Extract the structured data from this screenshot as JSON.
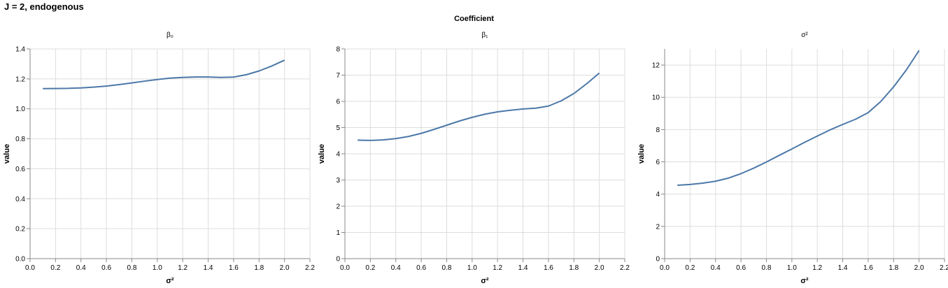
{
  "title": "J = 2, endogenous",
  "facet_header": "Coefficient",
  "colors": {
    "line": "#4c78a8",
    "grid": "#dddddd",
    "axis": "#888888",
    "text": "#000000"
  },
  "chart_data": [
    {
      "type": "line",
      "title": "β₀",
      "xlabel": "σ²",
      "ylabel": "value",
      "xlim": [
        0,
        2.2
      ],
      "ylim": [
        0,
        1.4
      ],
      "xticks": [
        "0.0",
        "0.2",
        "0.4",
        "0.6",
        "0.8",
        "1.0",
        "1.2",
        "1.4",
        "1.6",
        "1.8",
        "2.0",
        "2.2"
      ],
      "yticks": [
        "0.0",
        "0.2",
        "0.4",
        "0.6",
        "0.8",
        "1.0",
        "1.2",
        "1.4"
      ],
      "grid": true,
      "x": [
        0.1,
        0.2,
        0.3,
        0.4,
        0.5,
        0.6,
        0.7,
        0.8,
        0.9,
        1.0,
        1.1,
        1.2,
        1.3,
        1.4,
        1.5,
        1.6,
        1.7,
        1.8,
        1.9,
        2.0
      ],
      "values": [
        1.135,
        1.136,
        1.137,
        1.14,
        1.145,
        1.152,
        1.162,
        1.173,
        1.185,
        1.196,
        1.205,
        1.21,
        1.213,
        1.213,
        1.21,
        1.212,
        1.228,
        1.253,
        1.286,
        1.325
      ]
    },
    {
      "type": "line",
      "title": "β₁",
      "xlabel": "σ²",
      "ylabel": "value",
      "xlim": [
        0,
        2.2
      ],
      "ylim": [
        0,
        8
      ],
      "xticks": [
        "0.0",
        "0.2",
        "0.4",
        "0.6",
        "0.8",
        "1.0",
        "1.2",
        "1.4",
        "1.6",
        "1.8",
        "2.0",
        "2.2"
      ],
      "yticks": [
        "0",
        "1",
        "2",
        "3",
        "4",
        "5",
        "6",
        "7",
        "8"
      ],
      "grid": true,
      "x": [
        0.1,
        0.2,
        0.3,
        0.4,
        0.5,
        0.6,
        0.7,
        0.8,
        0.9,
        1.0,
        1.1,
        1.2,
        1.3,
        1.4,
        1.5,
        1.6,
        1.7,
        1.8,
        1.9,
        2.0
      ],
      "values": [
        4.52,
        4.51,
        4.53,
        4.58,
        4.66,
        4.78,
        4.93,
        5.09,
        5.25,
        5.39,
        5.51,
        5.6,
        5.66,
        5.71,
        5.74,
        5.82,
        6.02,
        6.3,
        6.67,
        7.08
      ]
    },
    {
      "type": "line",
      "title": "σ²",
      "xlabel": "σ²",
      "ylabel": "value",
      "xlim": [
        0,
        2.2
      ],
      "ylim": [
        0,
        13
      ],
      "xticks": [
        "0.0",
        "0.2",
        "0.4",
        "0.6",
        "0.8",
        "1.0",
        "1.2",
        "1.4",
        "1.6",
        "1.8",
        "2.0",
        "2.2"
      ],
      "yticks": [
        "0",
        "2",
        "4",
        "6",
        "8",
        "10",
        "12"
      ],
      "grid": true,
      "x": [
        0.1,
        0.2,
        0.3,
        0.4,
        0.5,
        0.6,
        0.7,
        0.8,
        0.9,
        1.0,
        1.1,
        1.2,
        1.3,
        1.4,
        1.5,
        1.6,
        1.7,
        1.8,
        1.9,
        2.0
      ],
      "values": [
        4.55,
        4.6,
        4.68,
        4.8,
        4.99,
        5.27,
        5.61,
        5.99,
        6.4,
        6.8,
        7.21,
        7.6,
        7.98,
        8.32,
        8.64,
        9.05,
        9.75,
        10.65,
        11.7,
        12.9
      ]
    }
  ]
}
